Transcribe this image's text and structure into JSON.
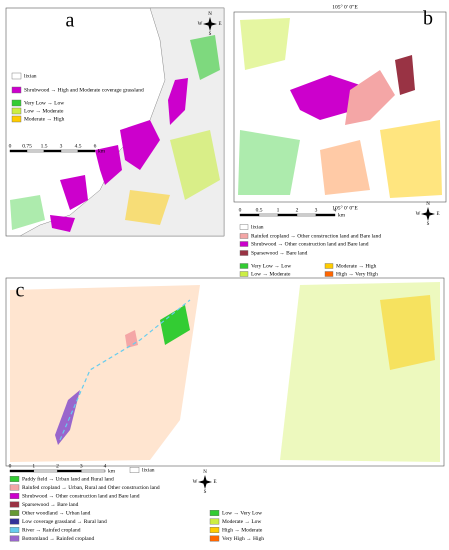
{
  "panels": [
    {
      "label": "a",
      "legend": [
        {
          "text": "lixian",
          "color": "#ffffff"
        },
        {
          "text": "Shrubwood → High and Moderate coverage grassland",
          "color": "#cc00cc"
        },
        {
          "text": "Very Low → Low",
          "color": "#33cc33"
        },
        {
          "text": "Low → Moderate",
          "color": "#ccee44"
        },
        {
          "text": "Moderate → High",
          "color": "#ffcc00"
        }
      ],
      "scale": {
        "ticks": [
          "0",
          "0.75",
          "1.5",
          "3",
          "4.5",
          "6"
        ],
        "unit": "km"
      },
      "compass": [
        "N",
        "S",
        "W",
        "E"
      ]
    },
    {
      "label": "b",
      "coordinates": [
        "105° 0′ 0″E",
        "105° 0′ 0″E"
      ],
      "legend": [
        {
          "text": "lixian",
          "color": "#ffffff"
        },
        {
          "text": "Rainfed cropland → Other construction land and Bare land",
          "color": "#f4a6a6"
        },
        {
          "text": "Shrubwood → Other construction land and Bare land",
          "color": "#cc00cc"
        },
        {
          "text": "Sparsewood → Bare land",
          "color": "#993344"
        },
        {
          "text": "Very Low → Low",
          "color": "#33cc33"
        },
        {
          "text": "Moderate → High",
          "color": "#ffcc00"
        },
        {
          "text": "Low → Moderate",
          "color": "#ccee44"
        },
        {
          "text": "High → Very High",
          "color": "#ff6600"
        }
      ],
      "scale": {
        "ticks": [
          "0",
          "0.5",
          "1",
          "2",
          "3",
          "4"
        ],
        "unit": "km"
      },
      "compass": [
        "N",
        "S",
        "W",
        "E"
      ]
    },
    {
      "label": "c",
      "legend": [
        {
          "text": "lixian",
          "color": "#ffffff"
        },
        {
          "text": "Paddy field → Urban land and Rural land",
          "color": "#33cc33"
        },
        {
          "text": "Rainfed cropland → Urban, Rural and Other construction land",
          "color": "#f4a6a6"
        },
        {
          "text": "Shrubwood → Other construction land and Bare land",
          "color": "#cc00cc"
        },
        {
          "text": "Sparsewood → Bare land",
          "color": "#993344"
        },
        {
          "text": "Other woodland → Urban land",
          "color": "#669933"
        },
        {
          "text": "Low coverage grassland → Rural land",
          "color": "#333399"
        },
        {
          "text": "River → Rainfed cropland",
          "color": "#66ccee"
        },
        {
          "text": "Bottomland → Rainfed cropland",
          "color": "#9966cc"
        },
        {
          "text": "Low → Very Low",
          "color": "#33cc33"
        },
        {
          "text": "Moderate → Low",
          "color": "#ccee44"
        },
        {
          "text": "High → Moderate",
          "color": "#ffcc00"
        },
        {
          "text": "Very High → High",
          "color": "#ff6600"
        }
      ],
      "scale": {
        "ticks": [
          "0",
          "1",
          "2",
          "3",
          "4"
        ],
        "unit": "km"
      },
      "compass": [
        "N",
        "S",
        "W",
        "E"
      ]
    }
  ]
}
